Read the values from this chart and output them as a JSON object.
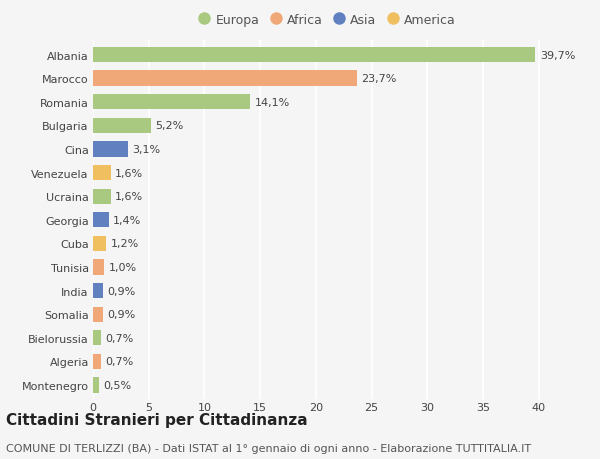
{
  "categories": [
    "Albania",
    "Marocco",
    "Romania",
    "Bulgaria",
    "Cina",
    "Venezuela",
    "Ucraina",
    "Georgia",
    "Cuba",
    "Tunisia",
    "India",
    "Somalia",
    "Bielorussia",
    "Algeria",
    "Montenegro"
  ],
  "values": [
    39.7,
    23.7,
    14.1,
    5.2,
    3.1,
    1.6,
    1.6,
    1.4,
    1.2,
    1.0,
    0.9,
    0.9,
    0.7,
    0.7,
    0.5
  ],
  "labels": [
    "39,7%",
    "23,7%",
    "14,1%",
    "5,2%",
    "3,1%",
    "1,6%",
    "1,6%",
    "1,4%",
    "1,2%",
    "1,0%",
    "0,9%",
    "0,9%",
    "0,7%",
    "0,7%",
    "0,5%"
  ],
  "continents": [
    "Europa",
    "Africa",
    "Europa",
    "Europa",
    "Asia",
    "America",
    "Europa",
    "Asia",
    "America",
    "Africa",
    "Asia",
    "Africa",
    "Europa",
    "Africa",
    "Europa"
  ],
  "continent_colors": {
    "Europa": "#a8c97f",
    "Africa": "#f0a878",
    "Asia": "#6080c0",
    "America": "#f0c060"
  },
  "legend_order": [
    "Europa",
    "Africa",
    "Asia",
    "America"
  ],
  "xlim": [
    0,
    42
  ],
  "xticks": [
    0,
    5,
    10,
    15,
    20,
    25,
    30,
    35,
    40
  ],
  "title": "Cittadini Stranieri per Cittadinanza",
  "subtitle": "COMUNE DI TERLIZZI (BA) - Dati ISTAT al 1° gennaio di ogni anno - Elaborazione TUTTITALIA.IT",
  "bg_color": "#f5f5f5",
  "grid_color": "#ffffff",
  "bar_height": 0.65,
  "title_fontsize": 11,
  "subtitle_fontsize": 8,
  "label_fontsize": 8,
  "tick_fontsize": 8,
  "legend_fontsize": 9
}
